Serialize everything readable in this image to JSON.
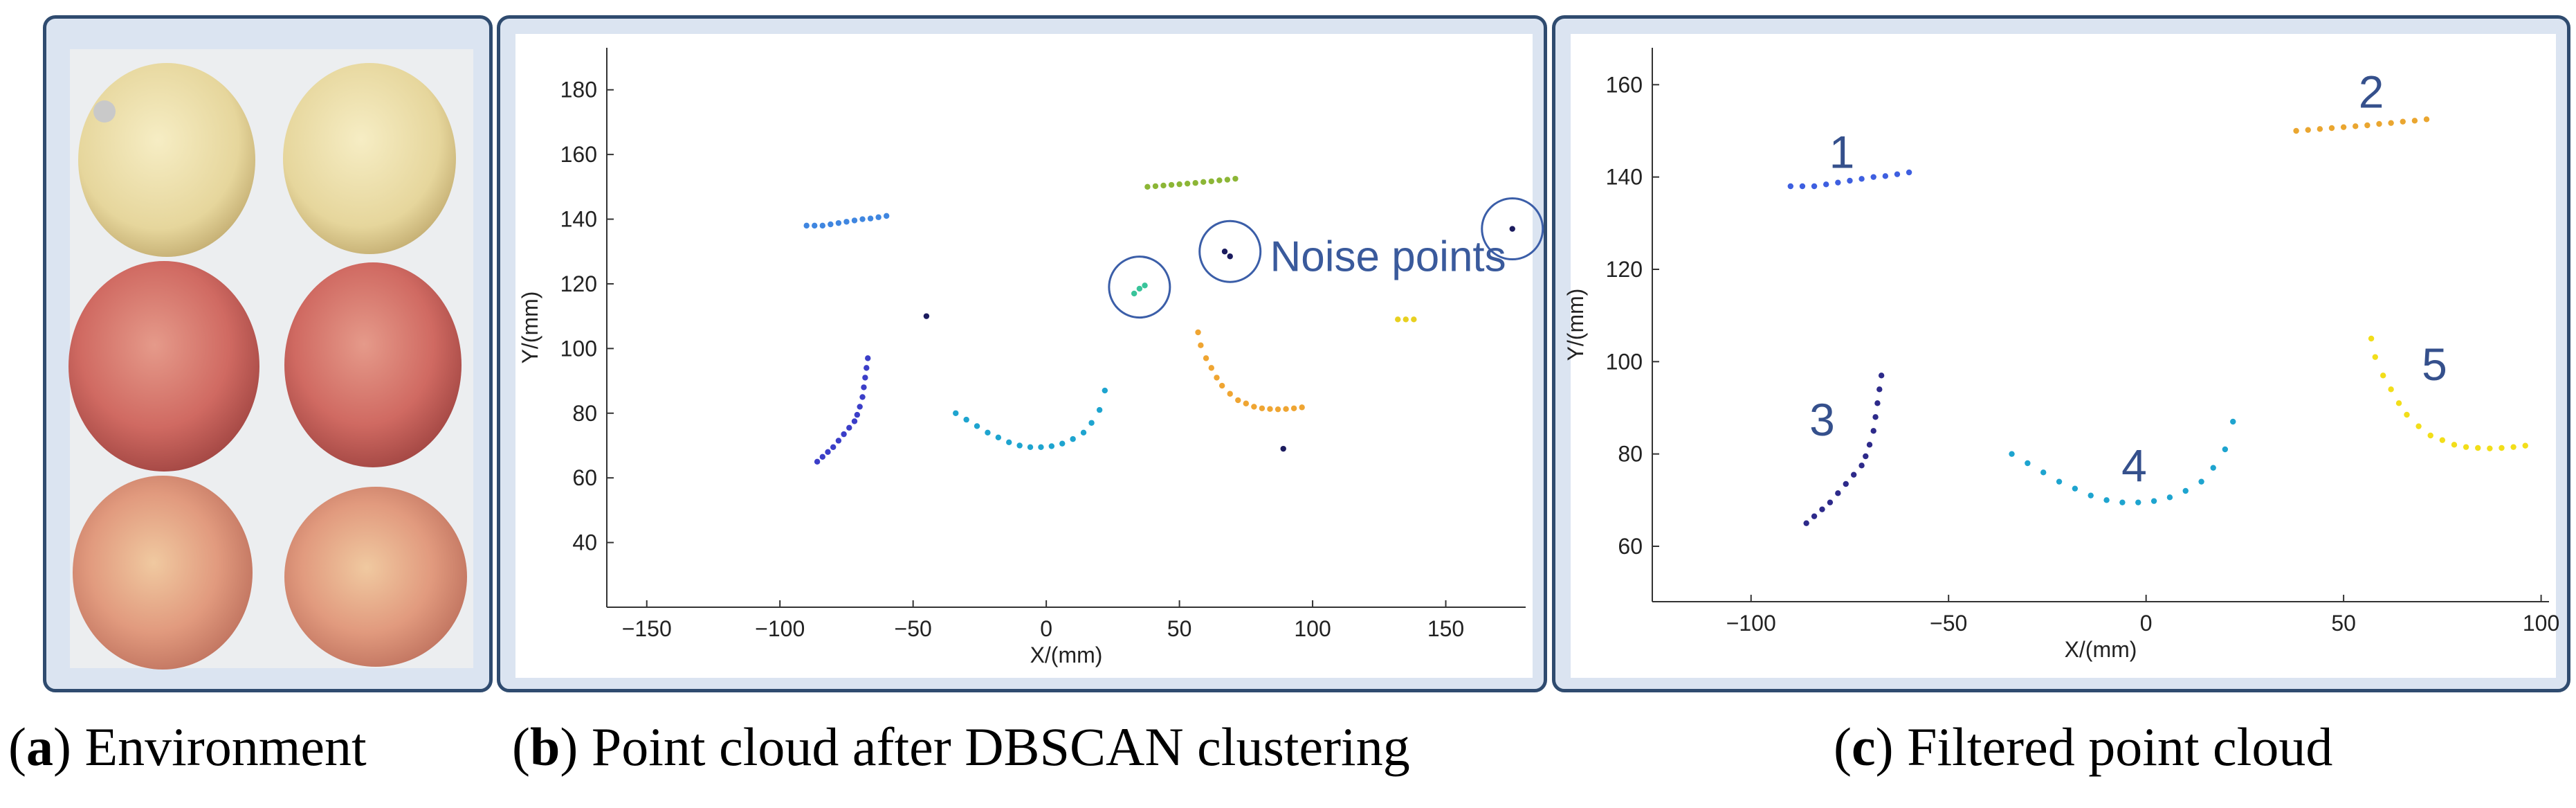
{
  "captions": {
    "a": {
      "letter": "a",
      "text": "Environment"
    },
    "b": {
      "letter": "b",
      "text": "Point cloud after DBSCAN clustering"
    },
    "c": {
      "letter": "c",
      "text": "Filtered point cloud"
    }
  },
  "photo": {
    "description_name": "six apples on tray",
    "colors": {
      "pear": "#e9dca6",
      "apple": "#d4716a"
    }
  },
  "chart_data": [
    {
      "id": "b",
      "type": "scatter",
      "title": "Point cloud after DBSCAN clustering",
      "xlabel": "X/(mm)",
      "ylabel": "Y/(mm)",
      "xlim": [
        -165,
        180
      ],
      "ylim": [
        20,
        193
      ],
      "xticks": [
        -150,
        -100,
        -50,
        0,
        50,
        100,
        150
      ],
      "yticks": [
        40,
        60,
        80,
        100,
        120,
        140,
        160,
        180
      ],
      "annotation": "Noise points",
      "noise_circles": [
        [
          35,
          119
        ],
        [
          69,
          130
        ],
        [
          175,
          137
        ]
      ],
      "series": [
        {
          "name": "cluster-top-left",
          "color": "#3f86e0",
          "points": [
            [
              -90,
              138
            ],
            [
              -87,
              138
            ],
            [
              -84,
              138
            ],
            [
              -81,
              138.4
            ],
            [
              -78,
              138.8
            ],
            [
              -75,
              139.2
            ],
            [
              -72,
              139.6
            ],
            [
              -69,
              140
            ],
            [
              -66,
              140.2
            ],
            [
              -63,
              140.6
            ],
            [
              -60,
              141
            ]
          ]
        },
        {
          "name": "cluster-top-right",
          "color": "#8cb636",
          "points": [
            [
              38,
              150
            ],
            [
              41,
              150.2
            ],
            [
              44,
              150.4
            ],
            [
              47,
              150.6
            ],
            [
              50,
              150.8
            ],
            [
              53,
              151
            ],
            [
              56,
              151.2
            ],
            [
              59,
              151.5
            ],
            [
              62,
              151.7
            ],
            [
              65,
              152
            ],
            [
              68,
              152.2
            ],
            [
              71,
              152.5
            ]
          ]
        },
        {
          "name": "cluster-left-arc",
          "color": "#3b3ec8",
          "points": [
            [
              -86,
              65
            ],
            [
              -84,
              66.5
            ],
            [
              -82,
              68
            ],
            [
              -80,
              69.5
            ],
            [
              -78,
              71.5
            ],
            [
              -76,
              73.5
            ],
            [
              -74,
              75.5
            ],
            [
              -72,
              77.5
            ],
            [
              -71,
              79.5
            ],
            [
              -70,
              82
            ],
            [
              -69,
              85
            ],
            [
              -68.5,
              88
            ],
            [
              -68,
              91
            ],
            [
              -67.5,
              94
            ],
            [
              -67,
              97
            ]
          ]
        },
        {
          "name": "cluster-bottom-arc",
          "color": "#1ea4cf",
          "points": [
            [
              -34,
              80
            ],
            [
              -30,
              78
            ],
            [
              -26,
              76
            ],
            [
              -22,
              74
            ],
            [
              -18,
              72.5
            ],
            [
              -14,
              71
            ],
            [
              -10,
              70
            ],
            [
              -6,
              69.5
            ],
            [
              -2,
              69.5
            ],
            [
              2,
              69.8
            ],
            [
              6,
              70.6
            ],
            [
              10,
              72
            ],
            [
              14,
              74
            ],
            [
              17,
              77
            ],
            [
              20,
              81
            ],
            [
              22,
              87
            ]
          ]
        },
        {
          "name": "cluster-right-arc",
          "color": "#efa532",
          "points": [
            [
              57,
              105
            ],
            [
              58,
              101
            ],
            [
              60,
              97
            ],
            [
              62,
              94
            ],
            [
              64,
              91
            ],
            [
              66,
              88.5
            ],
            [
              69,
              86
            ],
            [
              72,
              84
            ],
            [
              75,
              83
            ],
            [
              78,
              82
            ],
            [
              81,
              81.5
            ],
            [
              84,
              81.3
            ],
            [
              87,
              81.2
            ],
            [
              90,
              81.3
            ],
            [
              93,
              81.5
            ],
            [
              96,
              81.8
            ]
          ]
        },
        {
          "name": "noise",
          "color": "#1b1b5e",
          "points": [
            [
              -45,
              110
            ],
            [
              67,
              130
            ],
            [
              69,
              128.5
            ],
            [
              89,
              69
            ],
            [
              175,
              137
            ]
          ]
        },
        {
          "name": "noise-teal",
          "color": "#39c49a",
          "points": [
            [
              33,
              117
            ],
            [
              35,
              118.5
            ],
            [
              37,
              119.5
            ]
          ]
        },
        {
          "name": "noise-yellow",
          "color": "#e8d020",
          "points": [
            [
              132,
              109
            ],
            [
              135,
              109
            ],
            [
              138,
              109
            ]
          ]
        }
      ]
    },
    {
      "id": "c",
      "type": "scatter",
      "title": "Filtered point cloud",
      "xlabel": "X/(mm)",
      "ylabel": "Y/(mm)",
      "xlim": [
        -125,
        102
      ],
      "ylim": [
        48,
        168
      ],
      "xticks": [
        -100,
        -50,
        0,
        50,
        100
      ],
      "yticks": [
        60,
        80,
        100,
        120,
        140,
        160
      ],
      "labels": [
        {
          "text": "1",
          "x": -77,
          "y": 142
        },
        {
          "text": "2",
          "x": 57,
          "y": 155
        },
        {
          "text": "3",
          "x": -82,
          "y": 84
        },
        {
          "text": "4",
          "x": -3,
          "y": 74
        },
        {
          "text": "5",
          "x": 73,
          "y": 96
        }
      ],
      "series": [
        {
          "name": "1",
          "color": "#3e5fe0",
          "points": [
            [
              -90,
              138
            ],
            [
              -87,
              138
            ],
            [
              -84,
              138
            ],
            [
              -81,
              138.4
            ],
            [
              -78,
              138.8
            ],
            [
              -75,
              139.2
            ],
            [
              -72,
              139.6
            ],
            [
              -69,
              140
            ],
            [
              -66,
              140.2
            ],
            [
              -63,
              140.6
            ],
            [
              -60,
              141
            ]
          ]
        },
        {
          "name": "2",
          "color": "#eaa630",
          "points": [
            [
              38,
              150
            ],
            [
              41,
              150.2
            ],
            [
              44,
              150.4
            ],
            [
              47,
              150.6
            ],
            [
              50,
              150.8
            ],
            [
              53,
              151
            ],
            [
              56,
              151.2
            ],
            [
              59,
              151.5
            ],
            [
              62,
              151.7
            ],
            [
              65,
              152
            ],
            [
              68,
              152.2
            ],
            [
              71,
              152.5
            ]
          ]
        },
        {
          "name": "3",
          "color": "#2d2a8a",
          "points": [
            [
              -86,
              65
            ],
            [
              -84,
              66.5
            ],
            [
              -82,
              68
            ],
            [
              -80,
              69.5
            ],
            [
              -78,
              71.5
            ],
            [
              -76,
              73.5
            ],
            [
              -74,
              75.5
            ],
            [
              -72,
              77.5
            ],
            [
              -71,
              79.5
            ],
            [
              -70,
              82
            ],
            [
              -69,
              85
            ],
            [
              -68.5,
              88
            ],
            [
              -68,
              91
            ],
            [
              -67.5,
              94
            ],
            [
              -67,
              97
            ]
          ]
        },
        {
          "name": "4",
          "color": "#1ea4cf",
          "points": [
            [
              -34,
              80
            ],
            [
              -30,
              78
            ],
            [
              -26,
              76
            ],
            [
              -22,
              74
            ],
            [
              -18,
              72.5
            ],
            [
              -14,
              71
            ],
            [
              -10,
              70
            ],
            [
              -6,
              69.5
            ],
            [
              -2,
              69.5
            ],
            [
              2,
              69.8
            ],
            [
              6,
              70.6
            ],
            [
              10,
              72
            ],
            [
              14,
              74
            ],
            [
              17,
              77
            ],
            [
              20,
              81
            ],
            [
              22,
              87
            ]
          ]
        },
        {
          "name": "5",
          "color": "#f2de1a",
          "points": [
            [
              57,
              105
            ],
            [
              58,
              101
            ],
            [
              60,
              97
            ],
            [
              62,
              94
            ],
            [
              64,
              91
            ],
            [
              66,
              88.5
            ],
            [
              69,
              86
            ],
            [
              72,
              84
            ],
            [
              75,
              83
            ],
            [
              78,
              82
            ],
            [
              81,
              81.5
            ],
            [
              84,
              81.3
            ],
            [
              87,
              81.2
            ],
            [
              90,
              81.3
            ],
            [
              93,
              81.5
            ],
            [
              96,
              81.8
            ]
          ]
        }
      ]
    }
  ]
}
